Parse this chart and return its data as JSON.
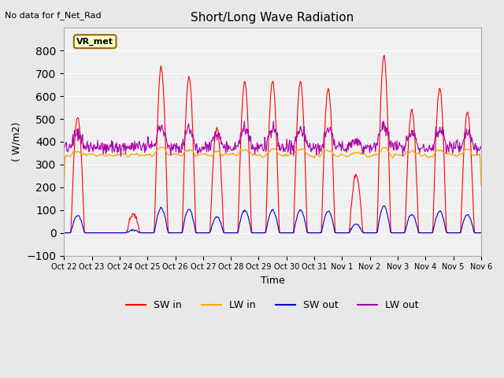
{
  "title": "Short/Long Wave Radiation",
  "xlabel": "Time",
  "ylabel": "( W/m2)",
  "ylim": [
    -100,
    900
  ],
  "yticks": [
    -100,
    0,
    100,
    200,
    300,
    400,
    500,
    600,
    700,
    800
  ],
  "note": "No data for f_Net_Rad",
  "legend_label": "VR_met",
  "bg_color": "#e8e8e8",
  "plot_bg_color": "#f0f0f0",
  "colors": {
    "SW_in": "#ff0000",
    "LW_in": "#ffa500",
    "SW_out": "#0000cc",
    "LW_out": "#aa00aa"
  },
  "xtick_labels": [
    "Oct 22",
    "Oct 23",
    "Oct 24",
    "Oct 25",
    "Oct 26",
    "Oct 27",
    "Oct 28",
    "Oct 29",
    "Oct 30",
    "Oct 31",
    "Nov 1",
    "Nov 2",
    "Nov 3",
    "Nov 4",
    "Nov 5",
    "Nov 6"
  ],
  "num_days": 15,
  "pts_per_day": 48,
  "sw_in_peaks": [
    510,
    0,
    80,
    725,
    685,
    465,
    660,
    665,
    665,
    635,
    255,
    775,
    540,
    635,
    530
  ]
}
